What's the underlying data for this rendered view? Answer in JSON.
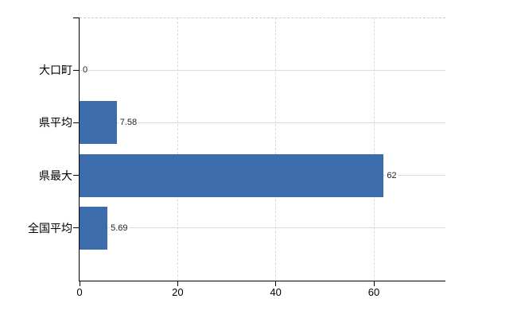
{
  "chart_data": {
    "type": "bar",
    "orientation": "horizontal",
    "title": "",
    "categories": [
      "大口町",
      "県平均",
      "県最大",
      "全国平均"
    ],
    "values": [
      0,
      7.58,
      62,
      5.69
    ],
    "value_labels": [
      "0",
      "7.58",
      "62",
      "5.69"
    ],
    "x_tick_values": [
      0,
      20,
      40,
      60
    ],
    "x_tick_labels": [
      "0",
      "20",
      "40",
      "60"
    ],
    "xlim": [
      0,
      75
    ],
    "grid": "on",
    "legend": "none",
    "colors": {
      "bar": "#3c6cab",
      "h_gridline": "#d6ded6",
      "v_gridline": "#dcdcdc",
      "top_border": "#cccccc",
      "axis": "#000000",
      "category_label": "#000000",
      "value_label": "#222222"
    }
  }
}
